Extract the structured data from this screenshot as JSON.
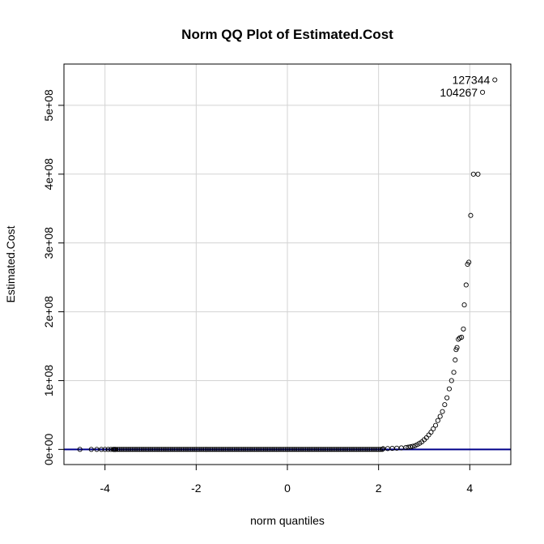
{
  "chart_data": {
    "type": "scatter",
    "title": "Norm QQ Plot of Estimated.Cost",
    "xlabel": "norm quantiles",
    "ylabel": "Estimated.Cost",
    "xlim": [
      -4.9,
      4.9
    ],
    "ylim": [
      -22000000,
      560000000
    ],
    "x_ticks": [
      -4,
      -2,
      0,
      2,
      4
    ],
    "x_tick_labels": [
      "-4",
      "-2",
      "0",
      "2",
      "4"
    ],
    "y_ticks": [
      0,
      100000000,
      200000000,
      300000000,
      400000000,
      500000000
    ],
    "y_tick_labels": [
      "0e+00",
      "1e+08",
      "2e+08",
      "3e+08",
      "4e+08",
      "5e+08"
    ],
    "grid": true,
    "reference_line": {
      "intercept": 0,
      "slope": 0,
      "color": "#00008b"
    },
    "points": [
      [
        -4.55,
        0
      ],
      [
        -4.3,
        0
      ],
      [
        -4.18,
        0
      ],
      [
        -4.08,
        0
      ],
      [
        -4.0,
        0
      ],
      [
        -3.93,
        0
      ],
      [
        -3.87,
        0
      ],
      [
        -3.82,
        0
      ],
      [
        -3.78,
        0
      ],
      [
        2.1,
        1000000
      ],
      [
        2.2,
        1200000
      ],
      [
        2.3,
        1500000
      ],
      [
        2.4,
        1800000
      ],
      [
        2.5,
        2200000
      ],
      [
        2.6,
        2800000
      ],
      [
        2.65,
        3200000
      ],
      [
        2.7,
        3800000
      ],
      [
        2.75,
        4500000
      ],
      [
        2.8,
        5500000
      ],
      [
        2.85,
        7000000
      ],
      [
        2.9,
        9000000
      ],
      [
        2.95,
        11000000
      ],
      [
        3.0,
        14000000
      ],
      [
        3.05,
        17000000
      ],
      [
        3.1,
        21000000
      ],
      [
        3.15,
        25000000
      ],
      [
        3.2,
        30000000
      ],
      [
        3.25,
        35000000
      ],
      [
        3.3,
        42000000
      ],
      [
        3.35,
        48000000
      ],
      [
        3.4,
        55000000
      ],
      [
        3.45,
        65000000
      ],
      [
        3.5,
        75000000
      ],
      [
        3.55,
        88000000
      ],
      [
        3.6,
        100000000
      ],
      [
        3.65,
        112000000
      ],
      [
        3.68,
        130000000
      ],
      [
        3.7,
        145000000
      ],
      [
        3.72,
        148000000
      ],
      [
        3.75,
        160000000
      ],
      [
        3.78,
        162000000
      ],
      [
        3.82,
        163000000
      ],
      [
        3.86,
        175000000
      ],
      [
        3.88,
        210000000
      ],
      [
        3.92,
        239000000
      ],
      [
        3.95,
        269000000
      ],
      [
        3.98,
        272000000
      ],
      [
        4.02,
        340000000
      ],
      [
        4.08,
        400000000
      ],
      [
        4.18,
        400000000
      ],
      [
        4.28,
        519000000
      ],
      [
        4.55,
        537000000
      ]
    ],
    "dense_band": {
      "x_from": -3.8,
      "x_to": 2.1,
      "y": 0
    },
    "labeled_points": [
      {
        "label": "127344",
        "x": 4.55,
        "y": 537000000,
        "anchor": "end"
      },
      {
        "label": "104267",
        "x": 4.28,
        "y": 519000000,
        "anchor": "end"
      }
    ],
    "colors": {
      "points": "#000000",
      "grid": "#d3d3d3",
      "reference_line": "#00008b"
    }
  }
}
